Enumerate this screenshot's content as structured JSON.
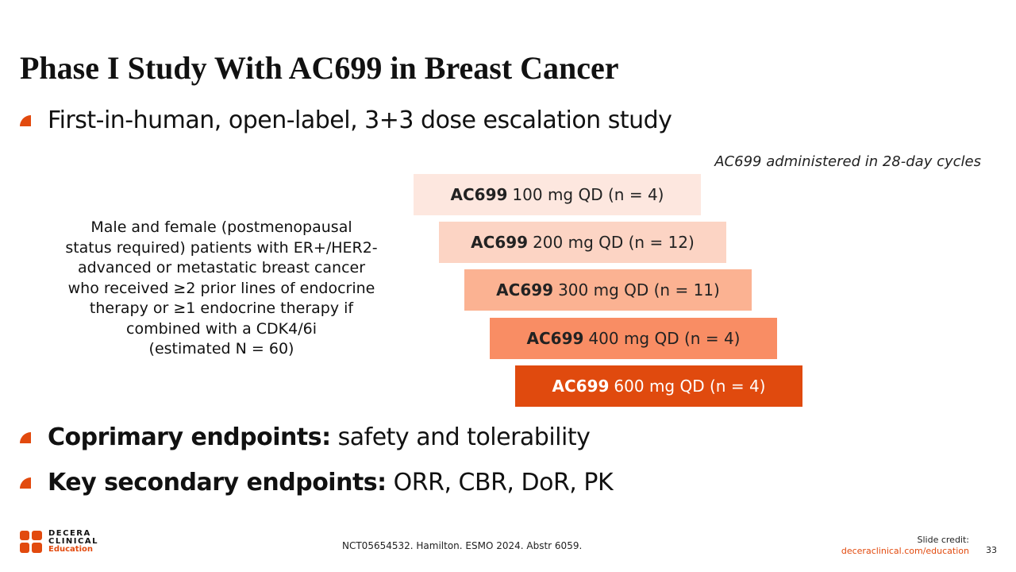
{
  "slide": {
    "title": "Phase I Study With AC699 in Breast Cancer",
    "bullets": [
      {
        "bold": "",
        "text": "First-in-human, open-label, 3+3 dose escalation study"
      },
      {
        "bold": "Coprimary endpoints:",
        "text": " safety and tolerability"
      },
      {
        "bold": "Key secondary endpoints:",
        "text": " ORR, CBR, DoR, PK"
      }
    ],
    "cycle_note": "AC699 administered in 28-day cycles",
    "population": "Male and female (postmenopausal\nstatus required) patients with ER+/HER2-\nadvanced or metastatic breast cancer\nwho received ≥2 prior lines of endocrine\ntherapy or ≥1 endocrine therapy if\ncombined with a CDK4/6i\n(estimated N = 60)",
    "doses": [
      {
        "drug": "AC699",
        "label": "100 mg QD (n = 4)",
        "color": "#fde7df",
        "text_color": "#222222"
      },
      {
        "drug": "AC699",
        "label": "200 mg QD (n = 12)",
        "color": "#fcd4c4",
        "text_color": "#222222"
      },
      {
        "drug": "AC699",
        "label": "300 mg QD (n = 11)",
        "color": "#fbb292",
        "text_color": "#222222"
      },
      {
        "drug": "AC699",
        "label": "400 mg QD (n = 4)",
        "color": "#f98d64",
        "text_color": "#222222"
      },
      {
        "drug": "AC699",
        "label": "600 mg QD (n = 4)",
        "color": "#e04a0e",
        "text_color": "#ffffff"
      }
    ]
  },
  "footer": {
    "logo": {
      "line1": "DECERA",
      "line2": "CLINICAL",
      "line3": "Education",
      "accent": "#e24a0e"
    },
    "citation": "NCT05654532. Hamilton. ESMO 2024. Abstr 6059.",
    "credit_label": "Slide credit:",
    "credit_url": "deceraclinical.com/education",
    "page": "33"
  }
}
